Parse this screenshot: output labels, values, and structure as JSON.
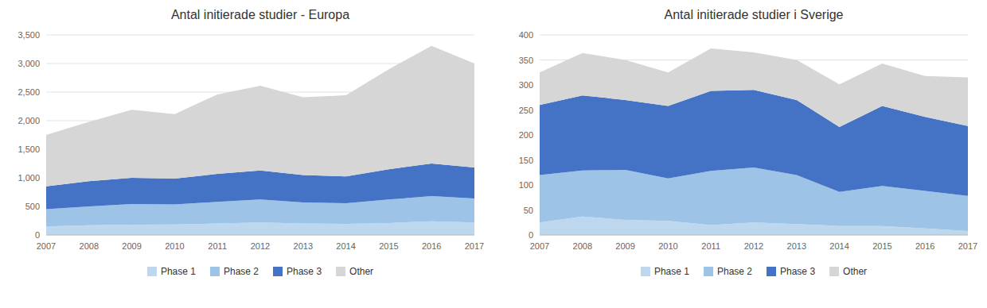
{
  "chart_data": [
    {
      "type": "area",
      "stacked": true,
      "title": "Antal initierade studier - Europa",
      "x": [
        2007,
        2008,
        2009,
        2010,
        2011,
        2012,
        2013,
        2014,
        2015,
        2016,
        2017
      ],
      "xlim": [
        2007,
        2017
      ],
      "xticks": [
        2007,
        2008,
        2009,
        2010,
        2011,
        2012,
        2013,
        2014,
        2015,
        2016,
        2017
      ],
      "series": [
        {
          "name": "Phase 1",
          "color": "#bdd7ee",
          "values": [
            150,
            170,
            180,
            185,
            200,
            220,
            200,
            195,
            210,
            240,
            220
          ]
        },
        {
          "name": "Phase 2",
          "color": "#9dc3e6",
          "values": [
            300,
            330,
            360,
            350,
            380,
            400,
            370,
            360,
            410,
            440,
            420
          ]
        },
        {
          "name": "Phase 3",
          "color": "#4472c4",
          "values": [
            400,
            440,
            460,
            450,
            490,
            510,
            480,
            470,
            530,
            570,
            540
          ]
        },
        {
          "name": "Other",
          "color": "#d6d6d6",
          "values": [
            900,
            1040,
            1190,
            1130,
            1390,
            1480,
            1360,
            1420,
            1750,
            2060,
            1820
          ]
        }
      ],
      "ylim": [
        0,
        3500
      ],
      "yticks": [
        0,
        500,
        {
          "value": 1000,
          "label": "1,000"
        },
        {
          "value": 1500,
          "label": "1,500"
        },
        {
          "value": 2000,
          "label": "2,000"
        },
        {
          "value": 2500,
          "label": "2,500"
        },
        {
          "value": 3000,
          "label": "3,000"
        },
        {
          "value": 3500,
          "label": "3,500"
        }
      ],
      "grid": true,
      "legend": "bottom"
    },
    {
      "type": "area",
      "stacked": true,
      "title": "Antal initierade studier i Sverige",
      "x": [
        2007,
        2008,
        2009,
        2010,
        2011,
        2012,
        2013,
        2014,
        2015,
        2016,
        2017
      ],
      "xlim": [
        2007,
        2017
      ],
      "xticks": [
        2007,
        2008,
        2009,
        2010,
        2011,
        2012,
        2013,
        2014,
        2015,
        2016,
        2017
      ],
      "series": [
        {
          "name": "Phase 1",
          "color": "#bdd7ee",
          "values": [
            25,
            37,
            30,
            28,
            20,
            25,
            22,
            18,
            18,
            13,
            8
          ]
        },
        {
          "name": "Phase 2",
          "color": "#9dc3e6",
          "values": [
            95,
            92,
            100,
            85,
            108,
            110,
            98,
            68,
            80,
            75,
            70
          ]
        },
        {
          "name": "Phase 3",
          "color": "#4472c4",
          "values": [
            140,
            150,
            140,
            145,
            160,
            155,
            150,
            130,
            160,
            148,
            140
          ]
        },
        {
          "name": "Other",
          "color": "#d6d6d6",
          "values": [
            65,
            85,
            80,
            67,
            85,
            75,
            80,
            85,
            85,
            82,
            97
          ]
        }
      ],
      "ylim": [
        0,
        400
      ],
      "yticks": [
        0,
        50,
        100,
        150,
        200,
        250,
        300,
        350,
        400
      ],
      "grid": true,
      "legend": "bottom"
    }
  ]
}
